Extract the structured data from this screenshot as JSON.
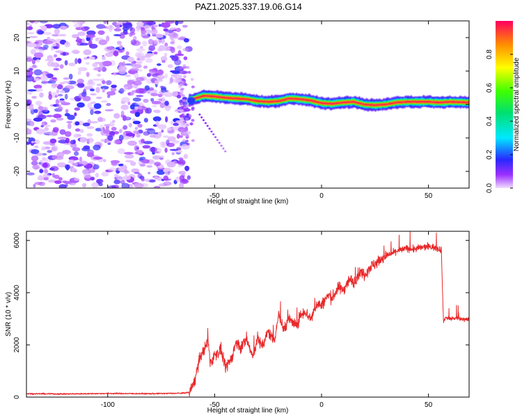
{
  "title": "PAZ1.2025.337.19.06.G14",
  "colors": {
    "snr_line": "#e8282a",
    "axis": "#000000"
  },
  "chart_data": [
    {
      "type": "heatmap",
      "xlabel": "Height of straight line (km)",
      "ylabel": "Frequency (Hz)",
      "xlim": [
        -138,
        69
      ],
      "ylim": [
        -25,
        25
      ],
      "x_ticks": [
        -100,
        -50,
        0,
        50
      ],
      "y_ticks": [
        -20,
        -10,
        0,
        10,
        20
      ],
      "colorbar": {
        "label": "Normalized spectral amplitude",
        "range": [
          0,
          1
        ],
        "ticks": [
          0,
          0.2,
          0.4,
          0.6,
          0.8
        ],
        "tick_labels": [
          "0.0",
          "0.2",
          "0.4",
          "0.6",
          "0.8"
        ]
      },
      "noise_region": {
        "x_range": [
          -138,
          -62
        ],
        "freq_range": [
          -25,
          25
        ],
        "amplitude": "low (0.0-0.2)"
      },
      "signal_track": {
        "x": [
          -62,
          -58,
          -55,
          -50,
          -45,
          -40,
          -35,
          -30,
          -25,
          -20,
          -15,
          -10,
          -5,
          0,
          5,
          10,
          15,
          20,
          25,
          30,
          35,
          40,
          45,
          50,
          55,
          60,
          65,
          69
        ],
        "frequency": [
          1.2,
          2.0,
          2.6,
          2.4,
          2.0,
          1.8,
          1.6,
          1.0,
          0.8,
          1.0,
          1.8,
          1.6,
          1.2,
          0.4,
          0.2,
          0.6,
          0.8,
          0.0,
          -0.2,
          0.0,
          0.6,
          0.8,
          0.8,
          0.8,
          0.6,
          0.8,
          0.7,
          0.6
        ],
        "peak_amplitude": 1.0
      },
      "side_tail": {
        "x": [
          -57,
          -45
        ],
        "frequency": [
          -3,
          -14
        ]
      }
    },
    {
      "type": "line",
      "xlabel": "Height of straight line (km)",
      "ylabel": "SNR (10 * v/v)",
      "xlim": [
        -138,
        69
      ],
      "ylim": [
        0,
        6350
      ],
      "x_ticks": [
        -100,
        -50,
        0,
        50
      ],
      "y_ticks": [
        0,
        2000,
        4000,
        6000
      ],
      "series": [
        {
          "name": "SNR",
          "x": [
            -138,
            -120,
            -100,
            -80,
            -65,
            -62,
            -60,
            -58,
            -57,
            -55,
            -53,
            -52,
            -50,
            -47,
            -45,
            -42,
            -40,
            -38,
            -35,
            -32,
            -30,
            -28,
            -25,
            -22,
            -20,
            -18,
            -15,
            -12,
            -10,
            -8,
            -5,
            -2,
            0,
            3,
            5,
            8,
            10,
            13,
            15,
            18,
            20,
            23,
            25,
            28,
            30,
            33,
            35,
            38,
            40,
            43,
            45,
            48,
            50,
            52,
            54,
            56,
            57,
            58,
            60,
            63,
            66,
            69
          ],
          "y": [
            130,
            120,
            140,
            130,
            150,
            180,
            450,
            1100,
            1500,
            1800,
            2100,
            1300,
            1600,
            1800,
            1100,
            1500,
            2100,
            1900,
            2200,
            1500,
            2300,
            1900,
            2500,
            2200,
            3200,
            2600,
            3000,
            2700,
            3100,
            3300,
            3000,
            3600,
            3500,
            3900,
            3800,
            4200,
            4100,
            4500,
            4400,
            4800,
            4700,
            5000,
            5100,
            5300,
            5400,
            5500,
            5600,
            5650,
            5700,
            5650,
            5700,
            5750,
            5750,
            5750,
            5700,
            5650,
            2900,
            3050,
            3000,
            3020,
            2980,
            3000
          ]
        }
      ]
    }
  ]
}
